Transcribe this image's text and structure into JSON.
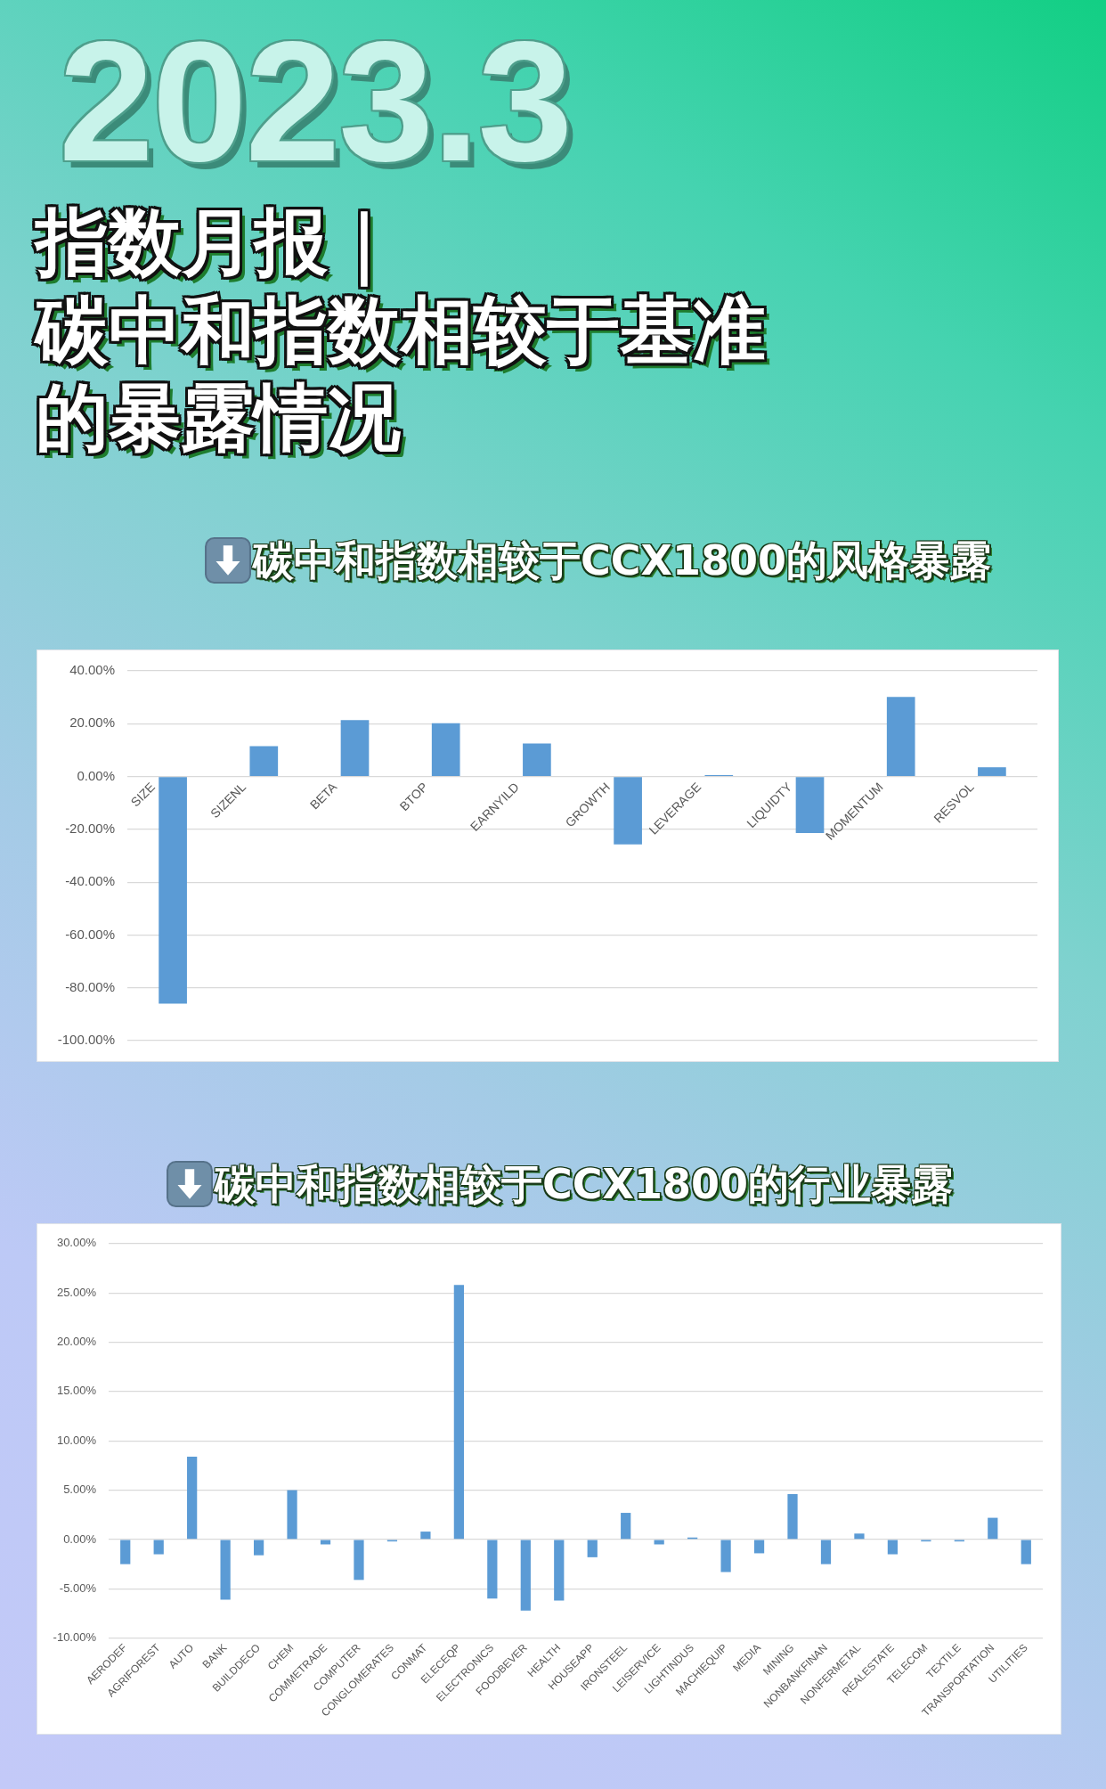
{
  "chart_data": [
    {
      "type": "other",
      "title": "指数月报｜",
      "subtitle": "碳中和指数相较于基准的暴露情况",
      "annotations": [
        "2023.3"
      ]
    },
    {
      "type": "bar",
      "title": "碳中和指数相较于CCX1800的风格暴露",
      "categories": [
        "SIZE",
        "SIZENL",
        "BETA",
        "BTOP",
        "EARNYILD",
        "GROWTH",
        "LEVERAGE",
        "LIQUIDTY",
        "MOMENTUM",
        "RESVOL"
      ],
      "values": [
        -86,
        11.5,
        21.4,
        20.2,
        12.5,
        -25.7,
        0.5,
        -21.4,
        30.1,
        3.5
      ],
      "color": "#5b9bd5",
      "ylim": [
        -100,
        40
      ],
      "yticks": [
        {
          "value": -100,
          "label": "-100.00%"
        },
        {
          "value": -80,
          "label": "-80.00%"
        },
        {
          "value": -60,
          "label": "-60.00%"
        },
        {
          "value": -40,
          "label": "-40.00%"
        },
        {
          "value": -20,
          "label": "-20.00%"
        },
        {
          "value": 0,
          "label": "0.00%"
        },
        {
          "value": 20,
          "label": "20.00%"
        },
        {
          "value": 40,
          "label": "40.00%"
        }
      ],
      "grid": "y"
    },
    {
      "type": "bar",
      "title": "碳中和指数相较于CCX1800的行业暴露",
      "categories": [
        "AERODEF",
        "AGRIFOREST",
        "AUTO",
        "BANK",
        "BUILDDECO",
        "CHEM",
        "COMMETRADE",
        "COMPUTER",
        "CONGLOMERATES",
        "CONMAT",
        "ELECEQP",
        "ELECTRONICS",
        "FOODBEVER",
        "HEALTH",
        "HOUSEAPP",
        "IRONSTEEL",
        "LEISERVICE",
        "LIGHTINDUS",
        "MACHIEQUIP",
        "MEDIA",
        "MINING",
        "NONBANKFINAN",
        "NONFERMETAL",
        "REALESTATE",
        "TELECOM",
        "TEXTILE",
        "TRANSPORTATION",
        "UTILITIES"
      ],
      "values": [
        -2.5,
        -1.5,
        8.4,
        -6.1,
        -1.6,
        5.0,
        -0.5,
        -4.1,
        -0.2,
        0.8,
        25.8,
        -6.0,
        -7.2,
        -6.2,
        -1.8,
        2.7,
        -0.5,
        0.2,
        -3.3,
        -1.4,
        4.6,
        -2.5,
        0.6,
        -1.5,
        -0.2,
        -0.2,
        2.2,
        -2.5
      ],
      "color": "#5b9bd5",
      "ylim": [
        -10,
        30
      ],
      "yticks": [
        {
          "value": -10,
          "label": "-10.00%"
        },
        {
          "value": -5,
          "label": "-5.00%"
        },
        {
          "value": 0,
          "label": "0.00%"
        },
        {
          "value": 5,
          "label": "5.00%"
        },
        {
          "value": 10,
          "label": "10.00%"
        },
        {
          "value": 15,
          "label": "15.00%"
        },
        {
          "value": 20,
          "label": "20.00%"
        },
        {
          "value": 25,
          "label": "25.00%"
        },
        {
          "value": 30,
          "label": "30.00%"
        }
      ],
      "grid": "y"
    }
  ]
}
